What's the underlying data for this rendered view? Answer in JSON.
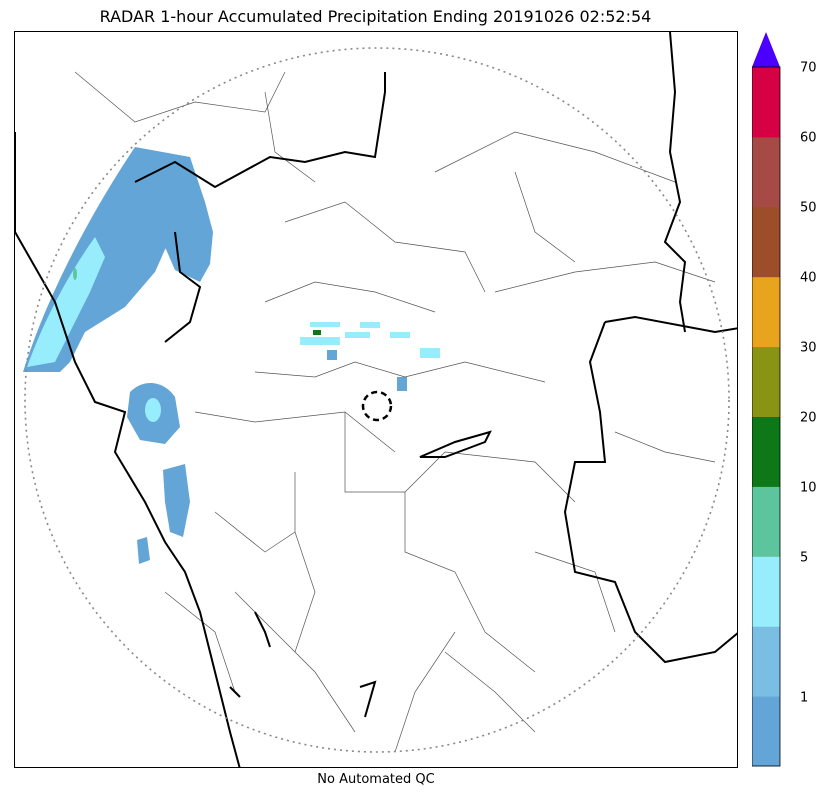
{
  "title": "RADAR 1-hour Accumulated Precipitation Ending 20191026 02:52:54",
  "footer_note": "No Automated QC",
  "colorbar": {
    "extend_color": "#4B00FF",
    "segments": [
      {
        "from": 0,
        "to": 1,
        "color": "#63A5D6"
      },
      {
        "from": 1,
        "to": 2,
        "color": "#7BBEE3"
      },
      {
        "from": 2,
        "to": 5,
        "color": "#98EDFD"
      },
      {
        "from": 5,
        "to": 10,
        "color": "#5DC59D"
      },
      {
        "from": 10,
        "to": 20,
        "color": "#0E7718"
      },
      {
        "from": 20,
        "to": 30,
        "color": "#8A9414"
      },
      {
        "from": 30,
        "to": 40,
        "color": "#E7A41C"
      },
      {
        "from": 40,
        "to": 50,
        "color": "#9B4E29"
      },
      {
        "from": 50,
        "to": 60,
        "color": "#A64A46"
      },
      {
        "from": 60,
        "to": 70,
        "color": "#D60045"
      }
    ],
    "tick_labels": [
      "1",
      "5",
      "10",
      "20",
      "30",
      "40",
      "50",
      "60",
      "70"
    ]
  },
  "map": {
    "range_ring": "dotted",
    "radar_site_marker": "dashed circle",
    "colors": {
      "precip_light": "#63A5D6",
      "precip_mid": "#7BBEE3",
      "precip_cyan": "#98EDFD",
      "precip_green": "#5DC59D",
      "border_thick": "#000000",
      "border_thin": "#555555",
      "range_ring": "#888888"
    }
  }
}
